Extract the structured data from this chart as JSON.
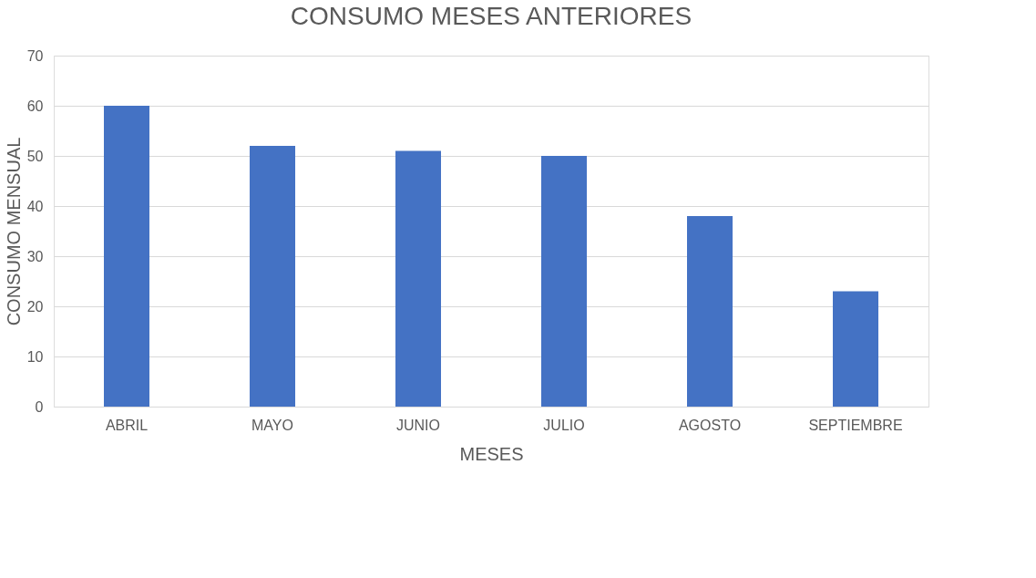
{
  "chart_data": {
    "type": "bar",
    "title": "CONSUMO MESES ANTERIORES",
    "xlabel": "MESES",
    "ylabel": "CONSUMO MENSUAL",
    "categories": [
      "ABRIL",
      "MAYO",
      "JUNIO",
      "JULIO",
      "AGOSTO",
      "SEPTIEMBRE"
    ],
    "values": [
      60,
      52,
      51,
      50,
      38,
      23
    ],
    "color": "#4472c4",
    "ylim": [
      0,
      70
    ],
    "yticks": [
      0,
      10,
      20,
      30,
      40,
      50,
      60,
      70
    ],
    "grid": "y"
  }
}
